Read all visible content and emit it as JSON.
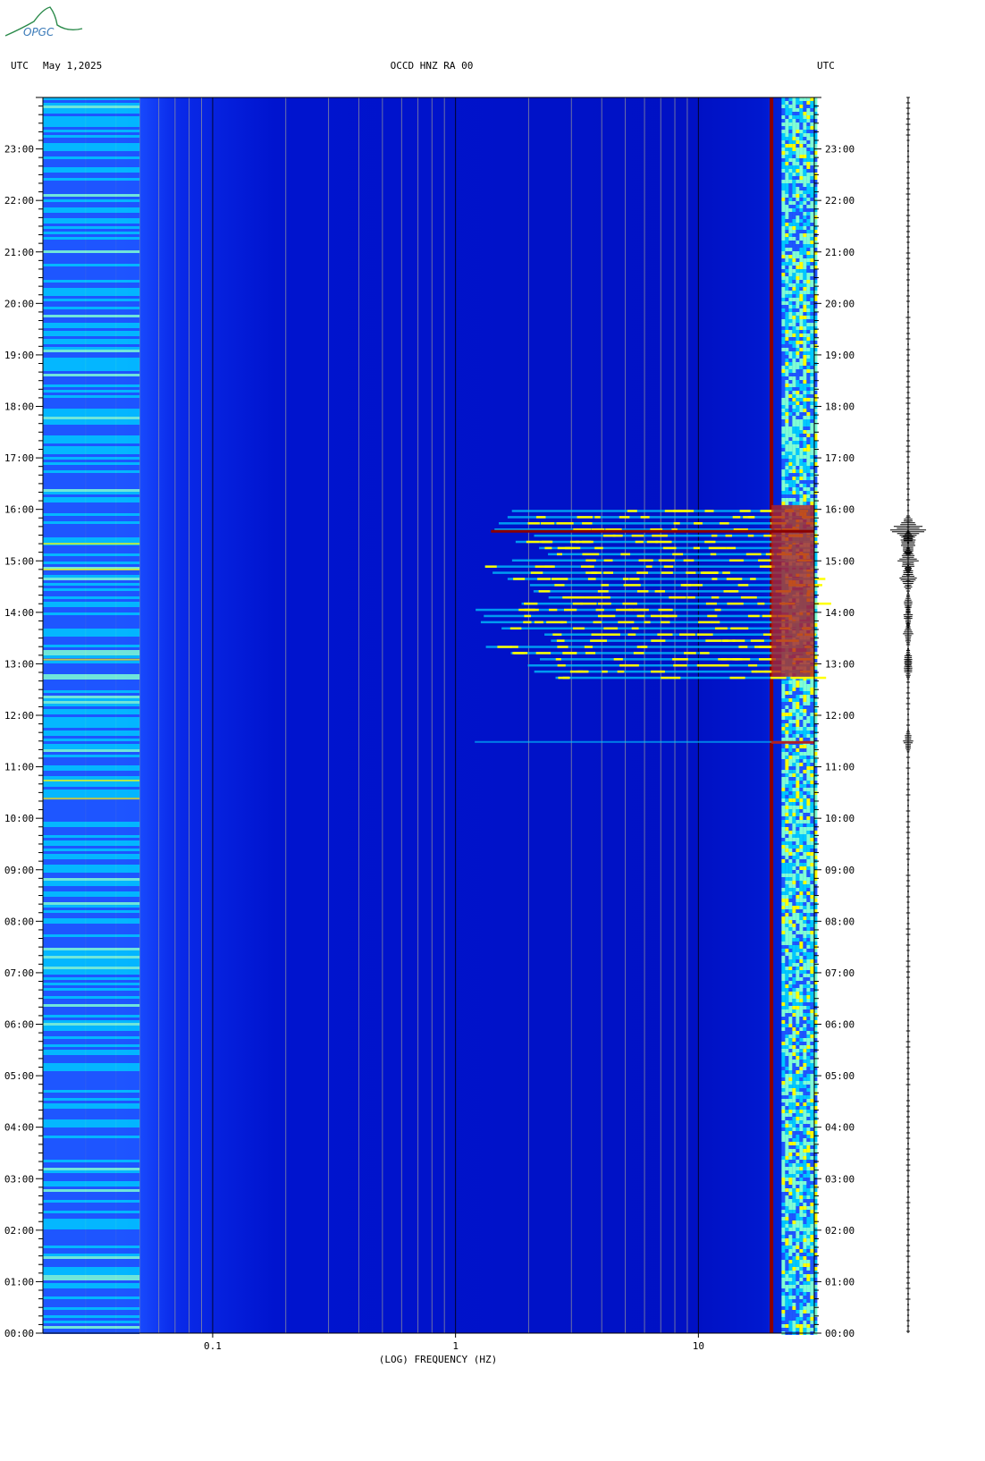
{
  "logo": {
    "text": "OPGC",
    "color": "#2a8a4a"
  },
  "header": {
    "left_tz": "UTC",
    "date": "May 1,2025",
    "station": "OCCD HNZ RA 00",
    "right_tz": "UTC"
  },
  "chart_data": {
    "type": "heatmap",
    "title": "OCCD HNZ RA 00",
    "xlabel": "(LOG) FREQUENCY (HZ)",
    "ylabel": "UTC",
    "x_scale": "log",
    "xlim": [
      0.02,
      30
    ],
    "x_ticks": [
      {
        "value": 0.1,
        "label": "0.1"
      },
      {
        "value": 1,
        "label": "1"
      },
      {
        "value": 10,
        "label": "10"
      }
    ],
    "ylim": [
      0,
      24
    ],
    "y_ticks": [
      "00:00",
      "01:00",
      "02:00",
      "03:00",
      "04:00",
      "05:00",
      "06:00",
      "07:00",
      "08:00",
      "09:00",
      "10:00",
      "11:00",
      "12:00",
      "13:00",
      "14:00",
      "15:00",
      "16:00",
      "17:00",
      "18:00",
      "19:00",
      "20:00",
      "21:00",
      "22:00",
      "23:00"
    ],
    "colormap": [
      "#00008b",
      "#0000cd",
      "#1e56ff",
      "#00c8ff",
      "#7fffd4",
      "#ffff00",
      "#ff8c00",
      "#b22222",
      "#8b0000"
    ],
    "features": [
      {
        "kind": "low-frequency band",
        "freq_range_hz": [
          0.02,
          0.05
        ],
        "time_range": [
          "00:00",
          "24:00"
        ],
        "level": "high"
      },
      {
        "kind": "persistent line",
        "freq_hz": 20,
        "time_range": [
          "00:00",
          "24:00"
        ],
        "level": "max"
      },
      {
        "kind": "high-frequency noise",
        "freq_range_hz": [
          22,
          30
        ],
        "time_range": [
          "00:00",
          "24:00"
        ],
        "level": "medium-high"
      },
      {
        "kind": "event swarm",
        "freq_range_hz": [
          1.2,
          30
        ],
        "time_range": [
          "12:45",
          "16:05"
        ],
        "level": "high"
      },
      {
        "kind": "event",
        "freq_range_hz": [
          1.2,
          30
        ],
        "time": "11:30",
        "level": "medium"
      }
    ],
    "seismogram": {
      "events": [
        "15:36",
        "15:20",
        "15:00",
        "14:40",
        "14:10",
        "13:55",
        "13:35",
        "13:05",
        "12:55",
        "11:30"
      ]
    }
  },
  "colors": {
    "background": "#ffffff",
    "spectrogram_base": "#0000cd",
    "trace": "#000000"
  }
}
